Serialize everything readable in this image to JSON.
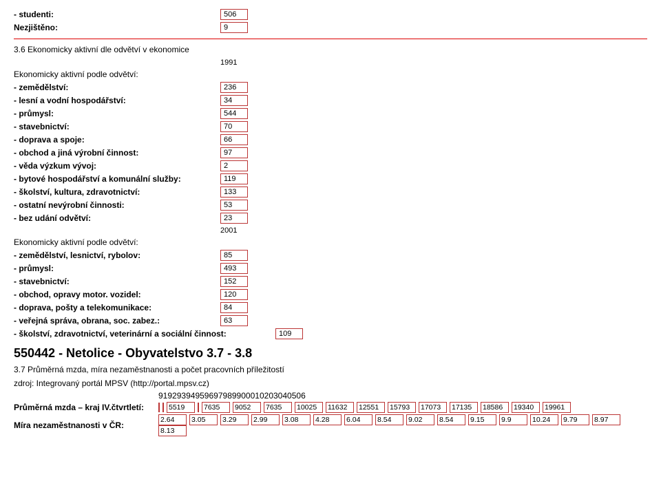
{
  "top": {
    "studenti_label": "- studenti:",
    "studenti_value": "506",
    "nezjisteno_label": "Nezjištěno:",
    "nezjisteno_value": "9"
  },
  "sec36": {
    "title": "3.6 Ekonomicky aktivní dle odvětví v ekonomice",
    "year1": "1991",
    "sub1": "Ekonomicky aktivní podle odvětví:",
    "rows1": {
      "zemedelstvi_l": "- zemědělství:",
      "zemedelstvi_v": "236",
      "lesni_l": "- lesní a vodní hospodářství:",
      "lesni_v": "34",
      "prumysl_l": "- průmysl:",
      "prumysl_v": "544",
      "stavebnictvi_l": "- stavebnictví:",
      "stavebnictvi_v": "70",
      "doprava_l": "- doprava a spoje:",
      "doprava_v": "66",
      "obchod_l": "- obchod a jiná výrobní činnost:",
      "obchod_v": "97",
      "veda_l": "- věda výzkum vývoj:",
      "veda_v": "2",
      "bytove_l": "- bytové hospodářství a komunální služby:",
      "bytove_v": "119",
      "skolstvi_l": "- školství, kultura, zdravotnictví:",
      "skolstvi_v": "133",
      "ostatni_l": "- ostatní nevýrobní činnosti:",
      "ostatni_v": "53",
      "bez_l": "- bez udání odvětví:",
      "bez_v": "23"
    },
    "year2": "2001",
    "sub2": "Ekonomicky aktivní podle odvětví:",
    "rows2": {
      "zemlr_l": "- zemědělství, lesnictví, rybolov:",
      "zemlr_v": "85",
      "prumysl2_l": "- průmysl:",
      "prumysl2_v": "493",
      "stav2_l": "- stavebnictví:",
      "stav2_v": "152",
      "obchmot_l": "- obchod, opravy motor. vozidel:",
      "obchmot_v": "120",
      "posty_l": "- doprava, pošty a telekomunikace:",
      "posty_v": "84",
      "verejna_l": "- veřejná správa, obrana, soc. zabez.:",
      "verejna_v": "63",
      "skolzdr_l": "- školství, zdravotnictví, veterinární a sociální činnost:",
      "skolzdr_v": "109"
    }
  },
  "bigtitle": "550442 - Netolice - Obyvatelstvo 3.7 - 3.8",
  "sec37": {
    "title": "3.7 Průměrná mzda, míra nezaměstnanosti a počet pracovních příležitostí",
    "source": "zdroj: Integrovaný portál MPSV (http://portal.mpsv.cz)",
    "years": [
      "91",
      "92",
      "93",
      "94",
      "95",
      "96",
      "97",
      "98",
      "99",
      "00",
      "01",
      "02",
      "03",
      "04",
      "05",
      "06"
    ],
    "mzda_label": "Průměrná mzda – kraj IV.čtvrtletí:",
    "mzda_values": [
      "",
      "",
      "5519",
      "",
      "7635",
      "9052",
      "7635",
      "10025",
      "11632",
      "12551",
      "15793",
      "17073",
      "17135",
      "18586",
      "19340",
      "19961"
    ],
    "mira_label": "Míra nezaměstnanosti v ČR:",
    "mira_values": [
      "2.64",
      "3.05",
      "3.29",
      "2.99",
      "3.08",
      "4.28",
      "6.04",
      "8.54",
      "9.02",
      "8.54",
      "9.15",
      "9.9",
      "10.24",
      "9.79",
      "8.97",
      "8.13"
    ]
  }
}
